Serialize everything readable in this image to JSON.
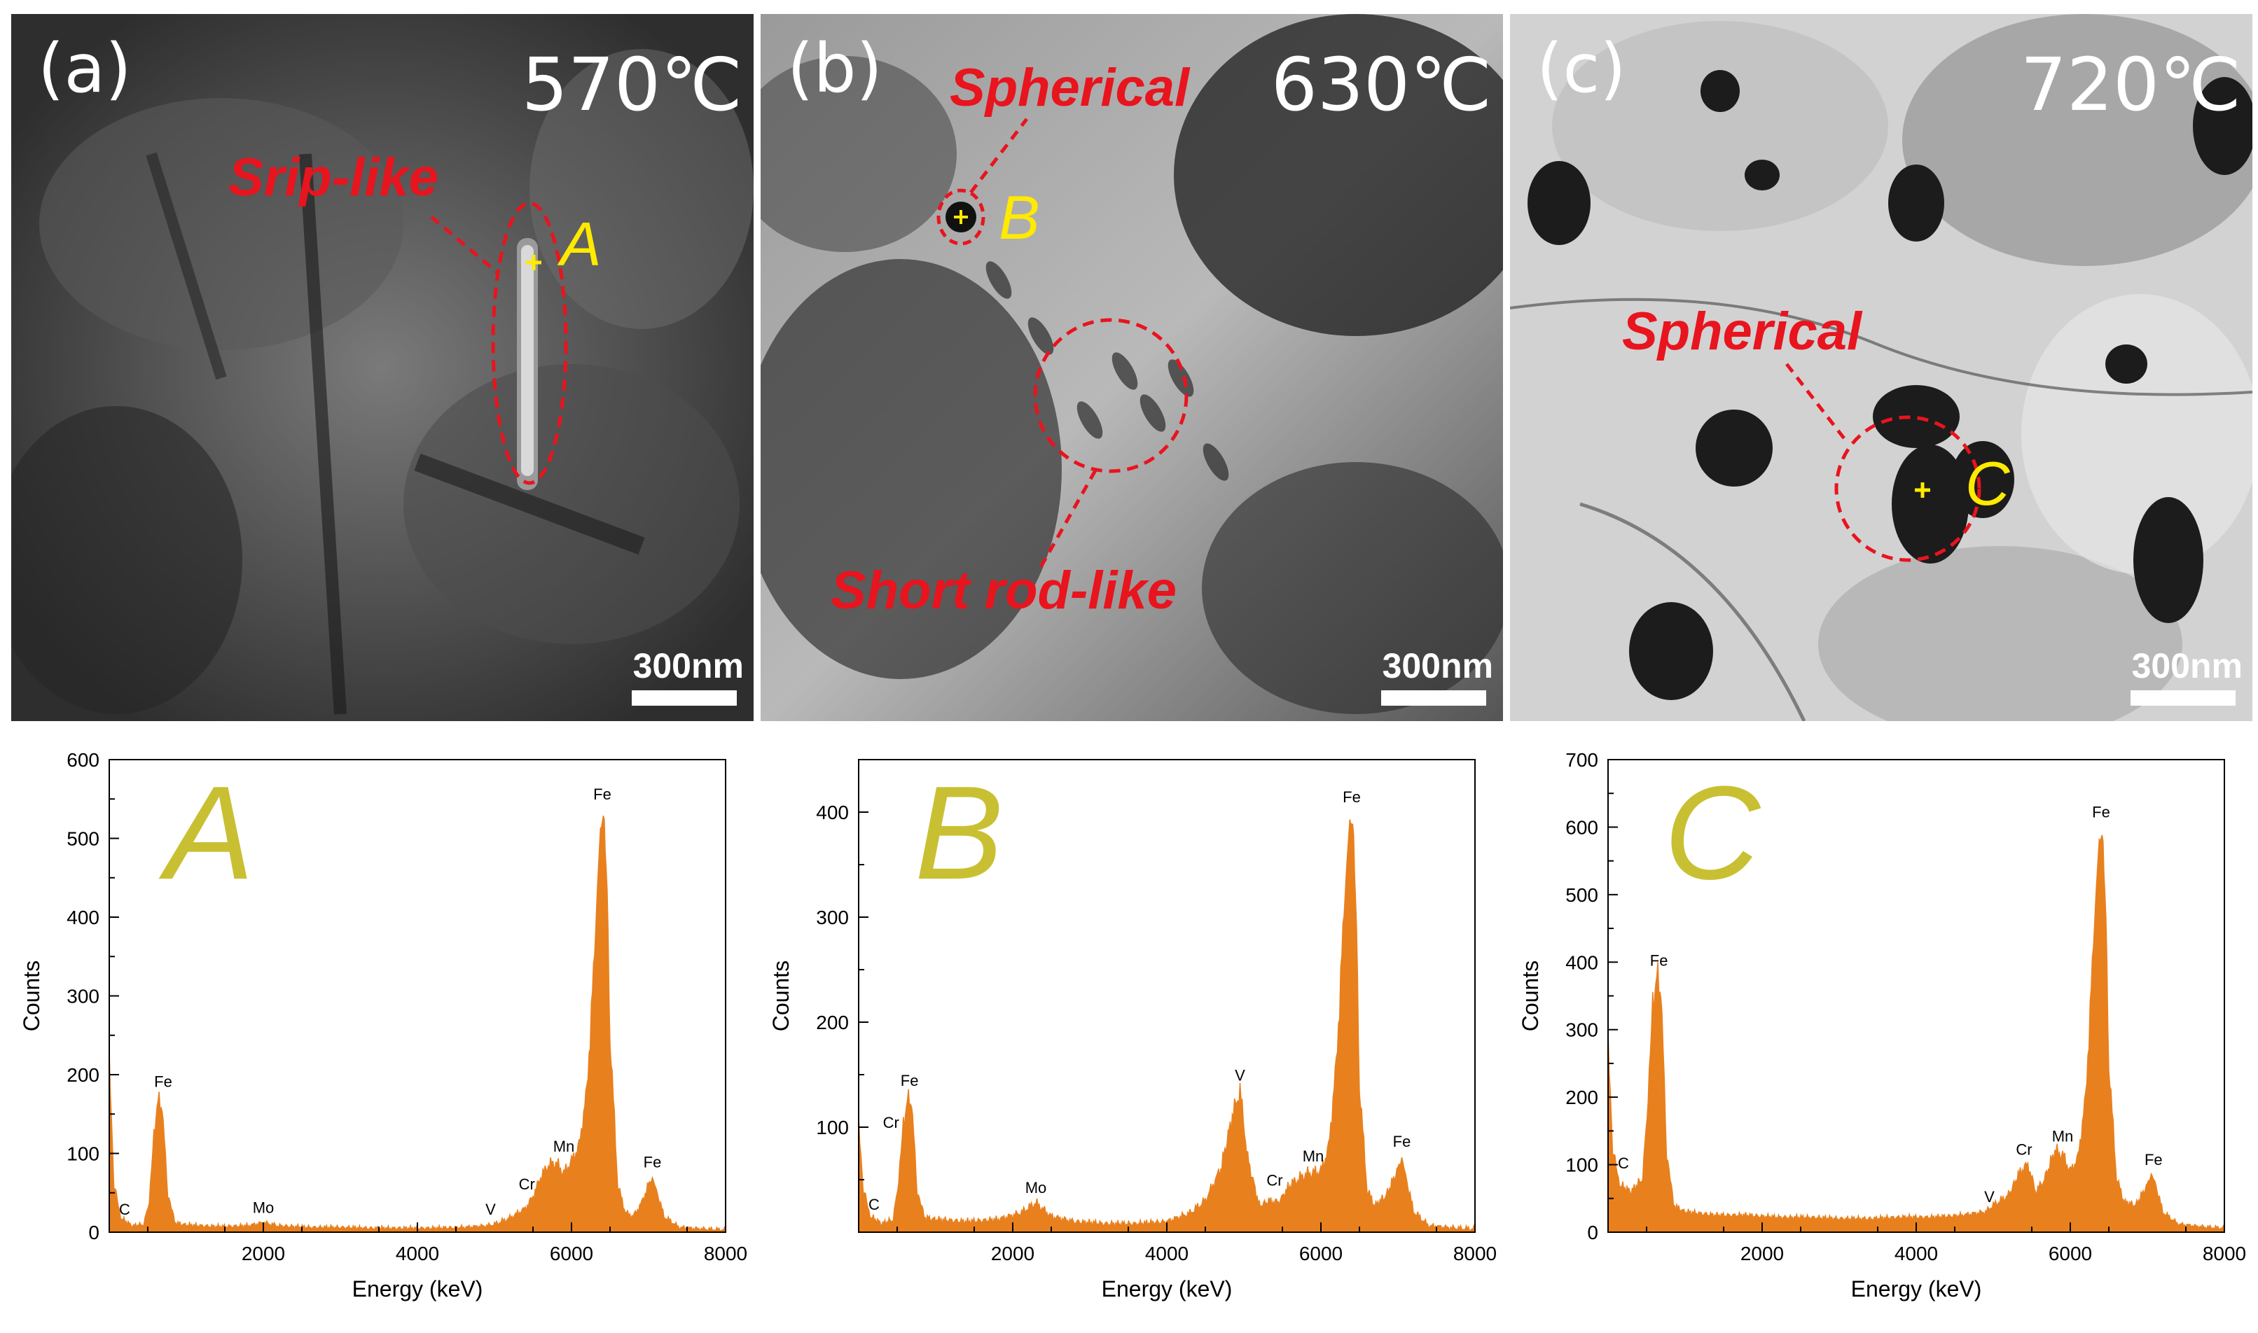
{
  "tem_panels": [
    {
      "panel_label": "(a)",
      "temperature": "570℃",
      "scale_bar": "300nm",
      "annotations": [
        "Srip-like"
      ],
      "point": "A"
    },
    {
      "panel_label": "(b)",
      "temperature": "630℃",
      "scale_bar": "300nm",
      "annotations": [
        "Spherical",
        "Short rod-like"
      ],
      "point": "B"
    },
    {
      "panel_label": "(c)",
      "temperature": "720℃",
      "scale_bar": "300nm",
      "annotations": [
        "Spherical"
      ],
      "point": "C"
    }
  ],
  "colors": {
    "annotation": "#e8141e",
    "point_label": "#ffea00",
    "spectrum": "#e8801e",
    "big_letter": "#c8c032"
  },
  "chart_data": [
    {
      "type": "area",
      "big_label": "A",
      "xlabel": "Energy (keV)",
      "ylabel": "Counts",
      "xlim": [
        0,
        8000
      ],
      "ylim": [
        0,
        600
      ],
      "xticks": [
        2000,
        4000,
        6000,
        8000
      ],
      "yticks": [
        0,
        100,
        200,
        300,
        400,
        500,
        600
      ],
      "x": [
        0,
        60,
        150,
        300,
        450,
        520,
        580,
        620,
        660,
        700,
        760,
        850,
        1000,
        1400,
        1800,
        2000,
        2200,
        2600,
        3000,
        3400,
        3800,
        4200,
        4600,
        4900,
        5000,
        5200,
        5400,
        5500,
        5600,
        5700,
        5800,
        5900,
        6000,
        6100,
        6200,
        6300,
        6350,
        6400,
        6450,
        6500,
        6600,
        6700,
        6800,
        6900,
        7000,
        7050,
        7100,
        7200,
        7400,
        7700,
        8000
      ],
      "y": [
        230,
        60,
        18,
        8,
        10,
        40,
        120,
        160,
        170,
        140,
        50,
        12,
        9,
        7,
        8,
        12,
        8,
        6,
        6,
        5,
        5,
        5,
        6,
        8,
        10,
        18,
        30,
        45,
        70,
        85,
        88,
        75,
        90,
        110,
        180,
        350,
        470,
        535,
        480,
        250,
        60,
        25,
        20,
        35,
        60,
        68,
        55,
        20,
        6,
        4,
        3
      ],
      "peaks": [
        {
          "label": "C",
          "x": 200,
          "y": 10
        },
        {
          "label": "Fe",
          "x": 700,
          "y": 172
        },
        {
          "label": "Mo",
          "x": 2000,
          "y": 12
        },
        {
          "label": "V",
          "x": 4950,
          "y": 10
        },
        {
          "label": "Cr",
          "x": 5420,
          "y": 42
        },
        {
          "label": "Mn",
          "x": 5900,
          "y": 90
        },
        {
          "label": "Fe",
          "x": 6400,
          "y": 537
        },
        {
          "label": "Fe",
          "x": 7050,
          "y": 70
        }
      ]
    },
    {
      "type": "area",
      "big_label": "B",
      "xlabel": "Energy (keV)",
      "ylabel": "Counts",
      "xlim": [
        0,
        8000
      ],
      "ylim": [
        0,
        450
      ],
      "xticks": [
        2000,
        4000,
        6000,
        8000
      ],
      "yticks": [
        100,
        200,
        300,
        400
      ],
      "x": [
        0,
        60,
        150,
        300,
        450,
        520,
        580,
        620,
        660,
        700,
        760,
        850,
        1000,
        1400,
        1800,
        2100,
        2300,
        2500,
        2800,
        3200,
        3600,
        4000,
        4300,
        4500,
        4700,
        4850,
        4950,
        5050,
        5200,
        5350,
        5450,
        5600,
        5800,
        6000,
        6100,
        6200,
        6300,
        6350,
        6400,
        6450,
        6500,
        6600,
        6700,
        6850,
        7000,
        7050,
        7100,
        7200,
        7400,
        7700,
        8000
      ],
      "y": [
        110,
        40,
        15,
        8,
        12,
        50,
        100,
        120,
        130,
        110,
        40,
        14,
        12,
        10,
        12,
        18,
        28,
        15,
        10,
        8,
        8,
        10,
        18,
        30,
        60,
        110,
        135,
        70,
        25,
        30,
        28,
        45,
        55,
        58,
        80,
        160,
        300,
        370,
        400,
        330,
        140,
        40,
        25,
        35,
        60,
        70,
        55,
        20,
        6,
        4,
        3
      ],
      "peaks": [
        {
          "label": "C",
          "x": 200,
          "y": 12
        },
        {
          "label": "Cr",
          "x": 420,
          "y": 90
        },
        {
          "label": "Fe",
          "x": 660,
          "y": 130
        },
        {
          "label": "Mo",
          "x": 2300,
          "y": 28
        },
        {
          "label": "V",
          "x": 4950,
          "y": 135
        },
        {
          "label": "Cr",
          "x": 5400,
          "y": 35
        },
        {
          "label": "Mn",
          "x": 5900,
          "y": 58
        },
        {
          "label": "Fe",
          "x": 6400,
          "y": 400
        },
        {
          "label": "Fe",
          "x": 7050,
          "y": 72
        }
      ]
    },
    {
      "type": "area",
      "big_label": "C",
      "xlabel": "Energy (keV)",
      "ylabel": "Counts",
      "xlim": [
        0,
        8000
      ],
      "ylim": [
        0,
        700
      ],
      "xticks": [
        2000,
        4000,
        6000,
        8000
      ],
      "yticks": [
        0,
        100,
        200,
        300,
        400,
        500,
        600,
        700
      ],
      "x": [
        0,
        60,
        150,
        300,
        450,
        520,
        580,
        620,
        660,
        700,
        760,
        850,
        1000,
        1400,
        1800,
        2200,
        2600,
        3000,
        3400,
        3800,
        4200,
        4600,
        4900,
        5000,
        5200,
        5350,
        5450,
        5550,
        5650,
        5800,
        5900,
        6000,
        6100,
        6200,
        6300,
        6350,
        6400,
        6450,
        6500,
        6600,
        6700,
        6850,
        7000,
        7050,
        7100,
        7200,
        7400,
        7700,
        8000
      ],
      "y": [
        300,
        120,
        70,
        60,
        80,
        200,
        330,
        370,
        380,
        320,
        120,
        40,
        30,
        25,
        25,
        22,
        22,
        20,
        20,
        22,
        22,
        25,
        30,
        40,
        55,
        90,
        100,
        60,
        75,
        120,
        115,
        90,
        110,
        200,
        420,
        540,
        600,
        520,
        250,
        80,
        45,
        40,
        70,
        85,
        75,
        30,
        12,
        8,
        6
      ],
      "peaks": [
        {
          "label": "C",
          "x": 200,
          "y": 80
        },
        {
          "label": "Fe",
          "x": 660,
          "y": 380
        },
        {
          "label": "V",
          "x": 4950,
          "y": 30
        },
        {
          "label": "Cr",
          "x": 5400,
          "y": 100
        },
        {
          "label": "Mn",
          "x": 5900,
          "y": 120
        },
        {
          "label": "Fe",
          "x": 6400,
          "y": 600
        },
        {
          "label": "Fe",
          "x": 7080,
          "y": 85
        }
      ]
    }
  ]
}
